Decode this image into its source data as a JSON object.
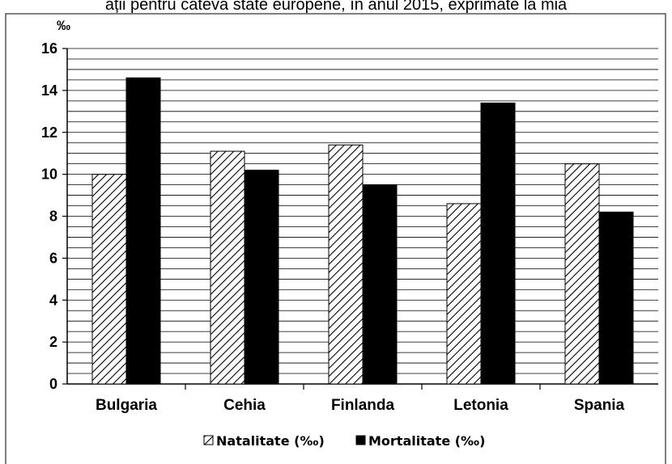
{
  "caption": "ații pentru câteva state europene, în anul 2015, exprimate la mia",
  "chart_data": {
    "type": "bar",
    "ylabel": "‰",
    "ylim": [
      0,
      16
    ],
    "yticks": [
      0,
      2,
      4,
      6,
      8,
      10,
      12,
      14,
      16
    ],
    "grid": true,
    "legend": "bottom",
    "categories": [
      "Bulgaria",
      "Cehia",
      "Finlanda",
      "Letonia",
      "Spania"
    ],
    "series": [
      {
        "name": "Natalitate (‰)",
        "values": [
          10.0,
          11.1,
          11.4,
          8.6,
          10.5
        ],
        "style": "hatched",
        "color": "#000000"
      },
      {
        "name": "Mortalitate (‰)",
        "values": [
          14.6,
          10.2,
          9.5,
          13.4,
          8.2
        ],
        "style": "solid",
        "color": "#000000"
      }
    ]
  }
}
